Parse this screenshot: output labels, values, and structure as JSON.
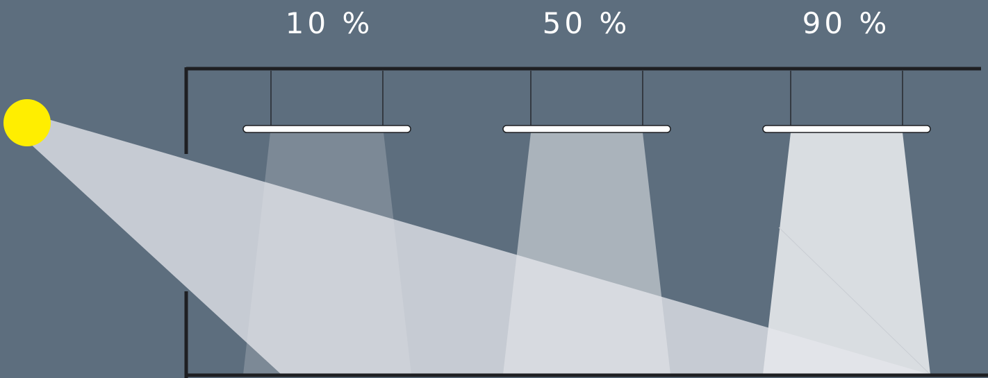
{
  "diagram": {
    "colors": {
      "background": "#5d6e7e",
      "sun": "#ffee00",
      "walls": "#1e1f22",
      "sunlight": "#e4e6ea",
      "lamp_body": "#ffffff",
      "lamp_light": "#ffffff"
    },
    "luminaires": [
      {
        "label": "10 %",
        "dimming_level": 0.1
      },
      {
        "label": "50 %",
        "dimming_level": 0.5
      },
      {
        "label": "90 %",
        "dimming_level": 0.9
      }
    ]
  }
}
